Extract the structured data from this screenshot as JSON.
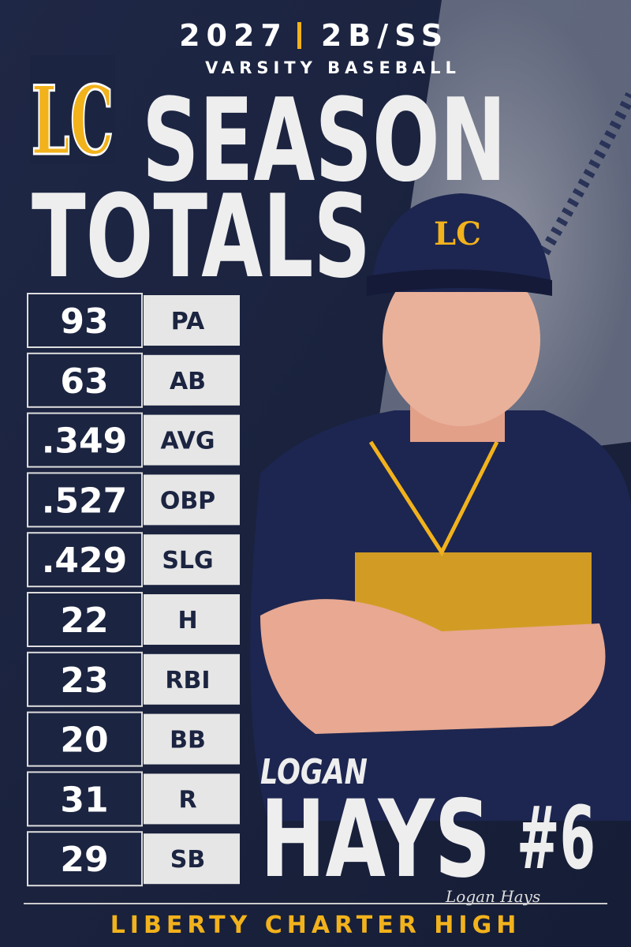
{
  "header": {
    "year": "2027",
    "position": "2B/SS",
    "subtitle": "VARSITY BASEBALL",
    "title_line1": "SEASON",
    "title_line2": "TOTALS",
    "logo": "LC"
  },
  "stats": [
    {
      "value": "93",
      "label": "PA"
    },
    {
      "value": "63",
      "label": "AB"
    },
    {
      "value": ".349",
      "label": "AVG"
    },
    {
      "value": ".527",
      "label": "OBP"
    },
    {
      "value": ".429",
      "label": "SLG"
    },
    {
      "value": "22",
      "label": "H"
    },
    {
      "value": "23",
      "label": "RBI"
    },
    {
      "value": "20",
      "label": "BB"
    },
    {
      "value": "31",
      "label": "R"
    },
    {
      "value": "29",
      "label": "SB"
    }
  ],
  "player": {
    "first_name": "LOGAN",
    "last_name": "HAYS",
    "number": "#6",
    "signature": "Logan Hays"
  },
  "footer": {
    "school": "LIBERTY CHARTER HIGH"
  }
}
